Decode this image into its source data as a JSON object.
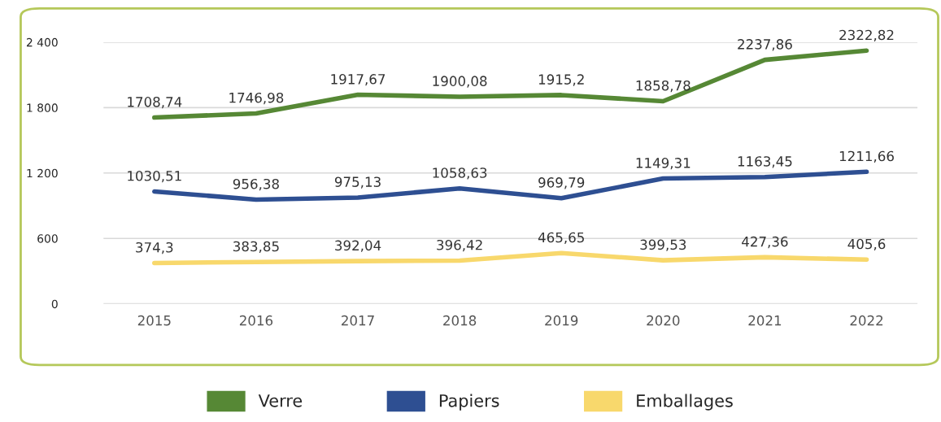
{
  "chart_data": {
    "type": "line",
    "categories": [
      "2015",
      "2016",
      "2017",
      "2018",
      "2019",
      "2020",
      "2021",
      "2022"
    ],
    "series": [
      {
        "name": "Verre",
        "color": "#568835",
        "values": [
          1708.74,
          1746.98,
          1917.67,
          1900.08,
          1915.2,
          1858.78,
          2237.86,
          2322.82
        ],
        "value_labels": [
          "1708,74",
          "1746,98",
          "1917,67",
          "1900,08",
          "1915,2",
          "1858,78",
          "2237,86",
          "2322,82"
        ]
      },
      {
        "name": "Papiers",
        "color": "#2e4f92",
        "values": [
          1030.51,
          956.38,
          975.13,
          1058.63,
          969.79,
          1149.31,
          1163.45,
          1211.66
        ],
        "value_labels": [
          "1030,51",
          "956,38",
          "975,13",
          "1058,63",
          "969,79",
          "1149,31",
          "1163,45",
          "1211,66"
        ]
      },
      {
        "name": "Emballages",
        "color": "#f8d86c",
        "values": [
          374.3,
          383.85,
          392.04,
          396.42,
          465.65,
          399.53,
          427.36,
          405.6
        ],
        "value_labels": [
          "374,3",
          "383,85",
          "392,04",
          "396,42",
          "465,65",
          "399,53",
          "427,36",
          "405,6"
        ]
      }
    ],
    "ylim": [
      0,
      2400
    ],
    "yticks": [
      0,
      600,
      {
        "value": 1200,
        "label": "1 200"
      },
      {
        "value": 1800,
        "label": "1 800"
      },
      {
        "value": 2400,
        "label": "2 400"
      }
    ],
    "grid": "y",
    "legend": "bottom",
    "marker": "none",
    "line_style": "solid"
  }
}
